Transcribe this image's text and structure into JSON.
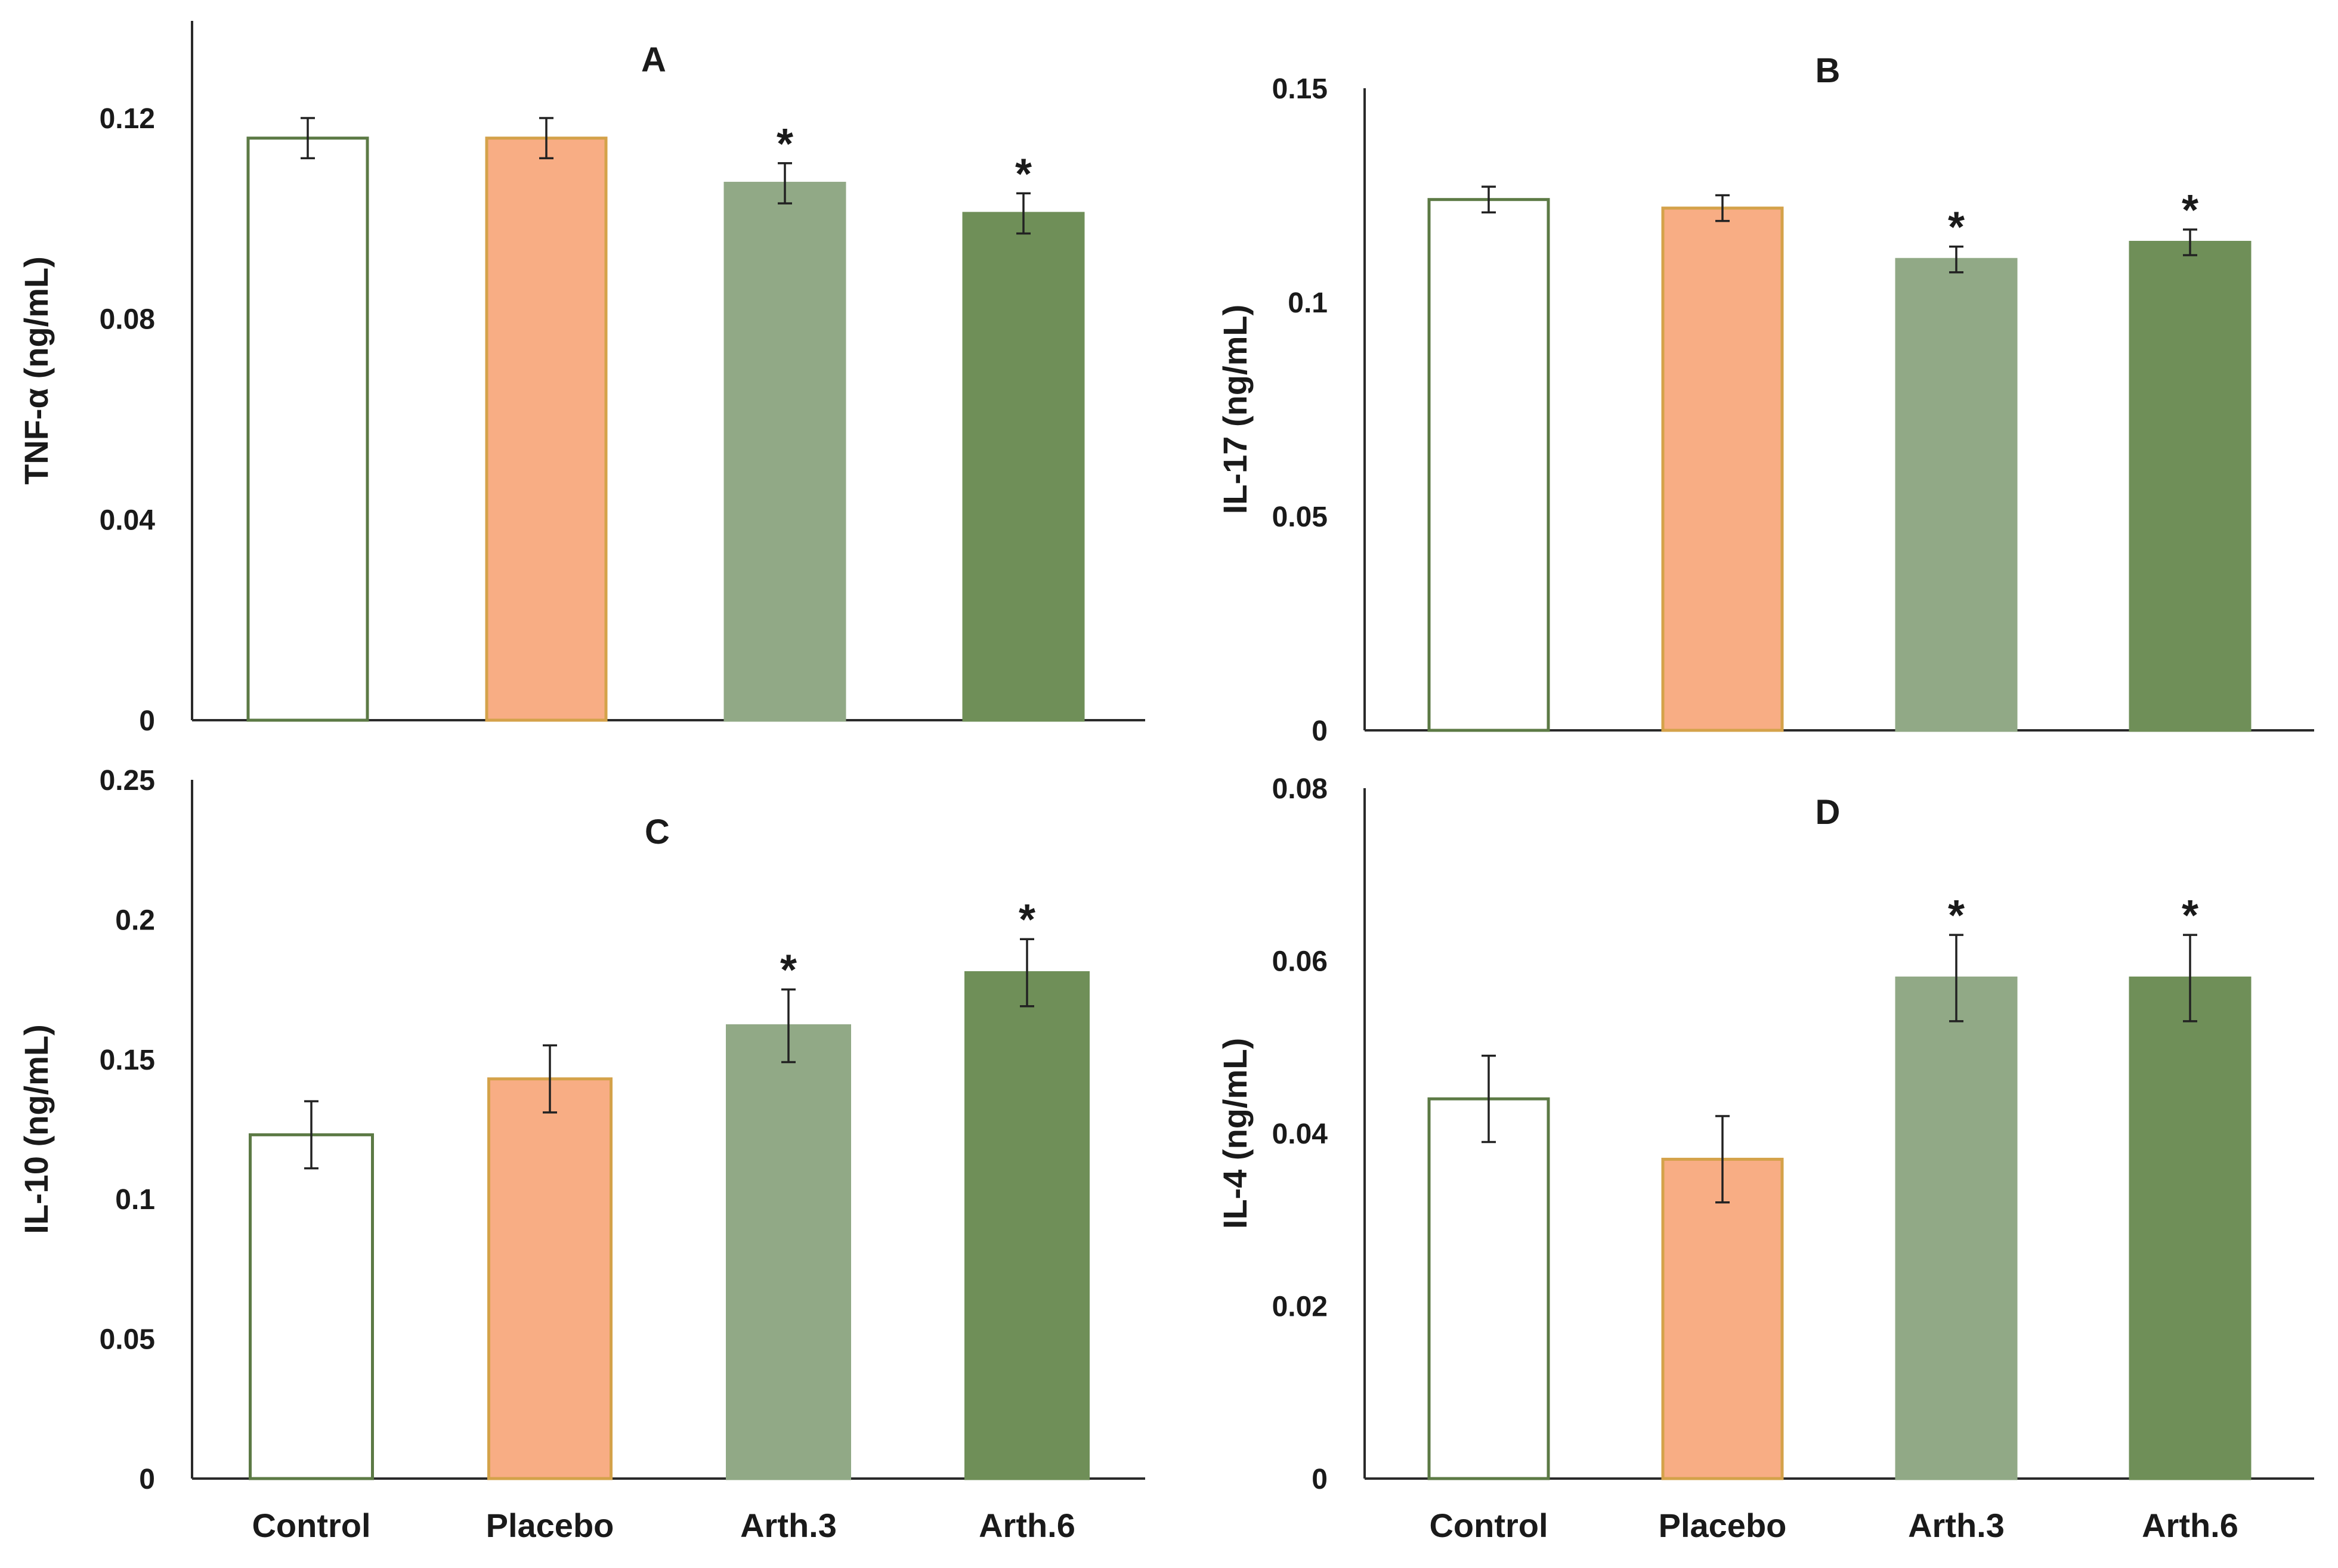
{
  "chart_data": [
    {
      "type": "bar",
      "panel": "A",
      "ylabel": "TNF-α (ng/mL)",
      "categories": [
        "Control",
        "Placebo",
        "Arth.3",
        "Arth.6"
      ],
      "values": [
        0.116,
        0.116,
        0.107,
        0.101
      ],
      "errors": [
        0.004,
        0.004,
        0.004,
        0.004
      ],
      "significant": [
        false,
        false,
        true,
        true
      ],
      "ylim": [
        0,
        0.12
      ],
      "yticks": [
        "0",
        "0.04",
        "0.08",
        "0.12"
      ],
      "show_xlabels": false
    },
    {
      "type": "bar",
      "panel": "B",
      "ylabel": "IL-17 (ng/mL)",
      "categories": [
        "Control",
        "Placebo",
        "Arth.3",
        "Arth.6"
      ],
      "values": [
        0.124,
        0.122,
        0.11,
        0.114
      ],
      "errors": [
        0.003,
        0.003,
        0.003,
        0.003
      ],
      "significant": [
        false,
        false,
        true,
        true
      ],
      "ylim": [
        0,
        0.15
      ],
      "yticks": [
        "0",
        "0.05",
        "0.1",
        "0.15"
      ],
      "show_xlabels": false
    },
    {
      "type": "bar",
      "panel": "C",
      "ylabel": "IL-10 (ng/mL)",
      "categories": [
        "Control",
        "Placebo",
        "Arth.3",
        "Arth.6"
      ],
      "values": [
        0.123,
        0.143,
        0.162,
        0.181
      ],
      "errors": [
        0.012,
        0.012,
        0.013,
        0.012
      ],
      "significant": [
        false,
        false,
        true,
        true
      ],
      "ylim": [
        0,
        0.25
      ],
      "yticks": [
        "0",
        "0.05",
        "0.1",
        "0.15",
        "0.2",
        "0.25"
      ],
      "show_xlabels": true
    },
    {
      "type": "bar",
      "panel": "D",
      "ylabel": "IL-4 (ng/mL)",
      "categories": [
        "Control",
        "Placebo",
        "Arth.3",
        "Arth.6"
      ],
      "values": [
        0.044,
        0.037,
        0.058,
        0.058
      ],
      "errors": [
        0.005,
        0.005,
        0.005,
        0.005
      ],
      "significant": [
        false,
        false,
        true,
        true
      ],
      "ylim": [
        0,
        0.08
      ],
      "yticks": [
        "0",
        "0.02",
        "0.04",
        "0.06",
        "0.08"
      ],
      "show_xlabels": true
    }
  ],
  "significance_marker": "*",
  "colors": {
    "bar_fills": [
      "#ffffff",
      "#f8ad84",
      "#91a986",
      "#6f8f58"
    ],
    "bar_strokes": [
      "#5c7a45",
      "#d4a24a",
      "#91a986",
      "#6f8f58"
    ],
    "axis": "#2a2a2a",
    "text": "#1a1a1a"
  }
}
